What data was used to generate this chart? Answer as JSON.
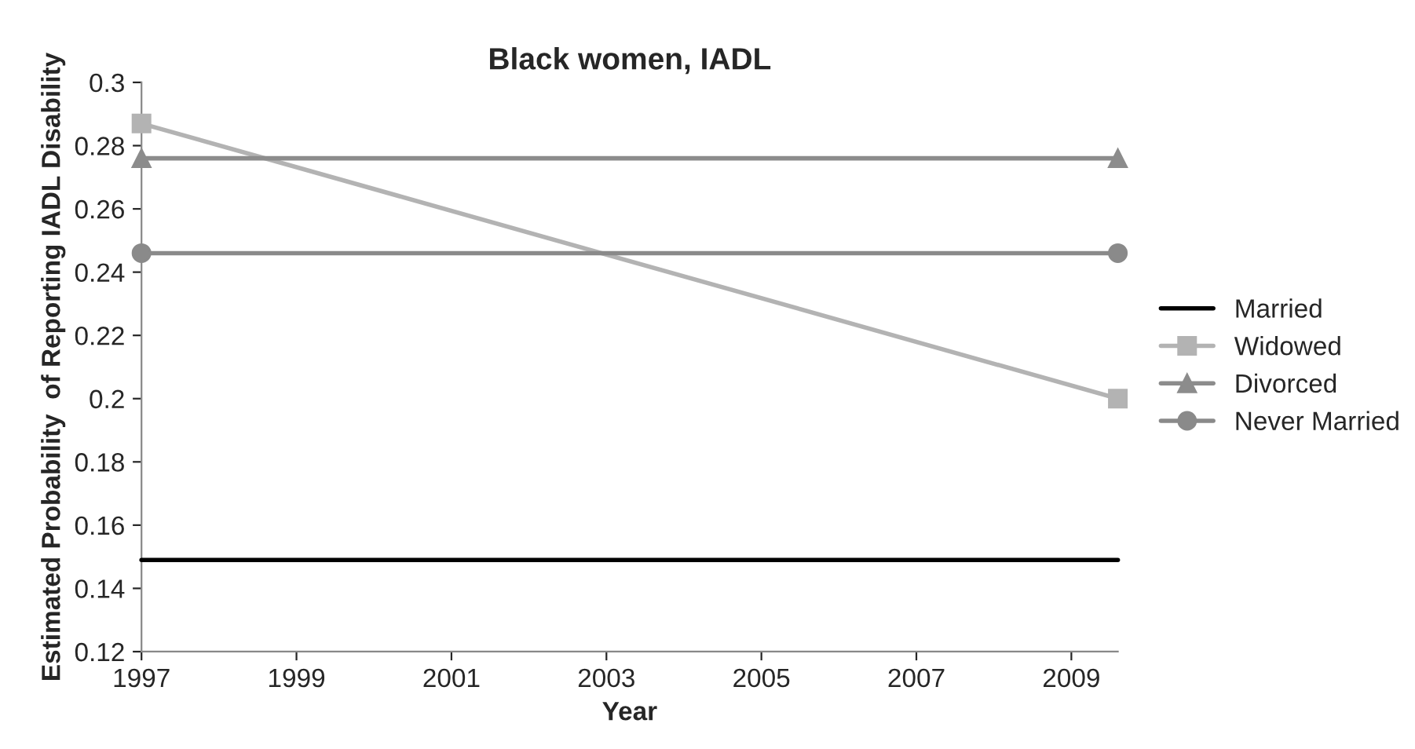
{
  "chart_data": {
    "type": "line",
    "title": "Black women, IADL",
    "xlabel": "Year",
    "ylabel": "Estimated Probability  of Reporting IADL Disability",
    "x": [
      1997,
      2009.6
    ],
    "series": [
      {
        "name": "Married",
        "color": "#000000",
        "values": [
          0.149,
          0.149
        ],
        "marker": "none"
      },
      {
        "name": "Widowed",
        "color": "#b3b3b3",
        "values": [
          0.287,
          0.2
        ],
        "marker": "square"
      },
      {
        "name": "Divorced",
        "color": "#8c8c8c",
        "values": [
          0.276,
          0.276
        ],
        "marker": "triangle"
      },
      {
        "name": "Never Married",
        "color": "#8a8a8a",
        "values": [
          0.246,
          0.246
        ],
        "marker": "circle"
      }
    ],
    "xlim": [
      1997,
      2009.6
    ],
    "xticks": [
      1997,
      1999,
      2001,
      2003,
      2005,
      2007,
      2009
    ],
    "ylim": [
      0.12,
      0.3
    ],
    "yticks": [
      0.12,
      0.14,
      0.16,
      0.18,
      0.2,
      0.22,
      0.24,
      0.26,
      0.28,
      0.3
    ],
    "grid": false,
    "legend": "right",
    "line_style": "solid"
  }
}
